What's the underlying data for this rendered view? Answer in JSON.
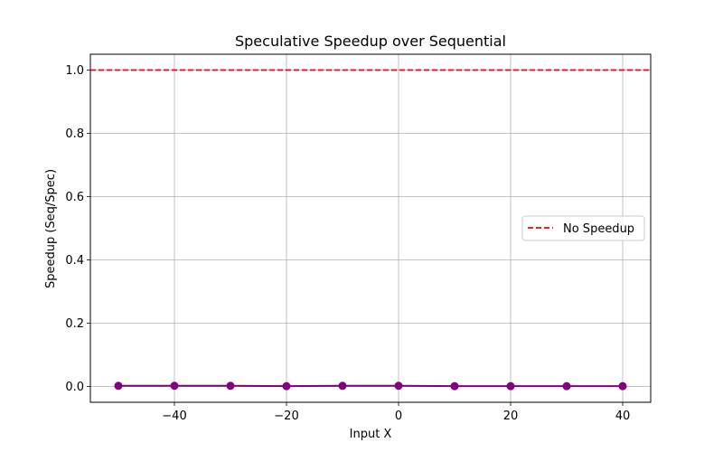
{
  "chart_data": {
    "type": "line",
    "title": "Speculative Speedup over Sequential",
    "xlabel": "Input X",
    "ylabel": "Speedup (Seq/Spec)",
    "xlim": [
      -55,
      45
    ],
    "ylim": [
      -0.05,
      1.05
    ],
    "xticks": [
      -40,
      -20,
      0,
      20,
      40
    ],
    "xtick_labels": [
      "−40",
      "−20",
      "0",
      "20",
      "40"
    ],
    "yticks": [
      0.0,
      0.2,
      0.4,
      0.6,
      0.8,
      1.0
    ],
    "ytick_labels": [
      "0.0",
      "0.2",
      "0.4",
      "0.6",
      "0.8",
      "1.0"
    ],
    "grid": true,
    "legend": {
      "placement": "center-right",
      "entries": [
        "No Speedup"
      ]
    },
    "series": [
      {
        "color": "#800080",
        "marker": "circle",
        "x": [
          -50,
          -40,
          -30,
          -20,
          -10,
          0,
          10,
          20,
          30,
          40
        ],
        "y": [
          0.002,
          0.002,
          0.002,
          0.001,
          0.002,
          0.002,
          0.001,
          0.001,
          0.001,
          0.001
        ]
      }
    ],
    "reference_lines": [
      {
        "name": "No Speedup",
        "y": 1.0,
        "color": "#ff0000",
        "style": "dashed"
      }
    ]
  }
}
